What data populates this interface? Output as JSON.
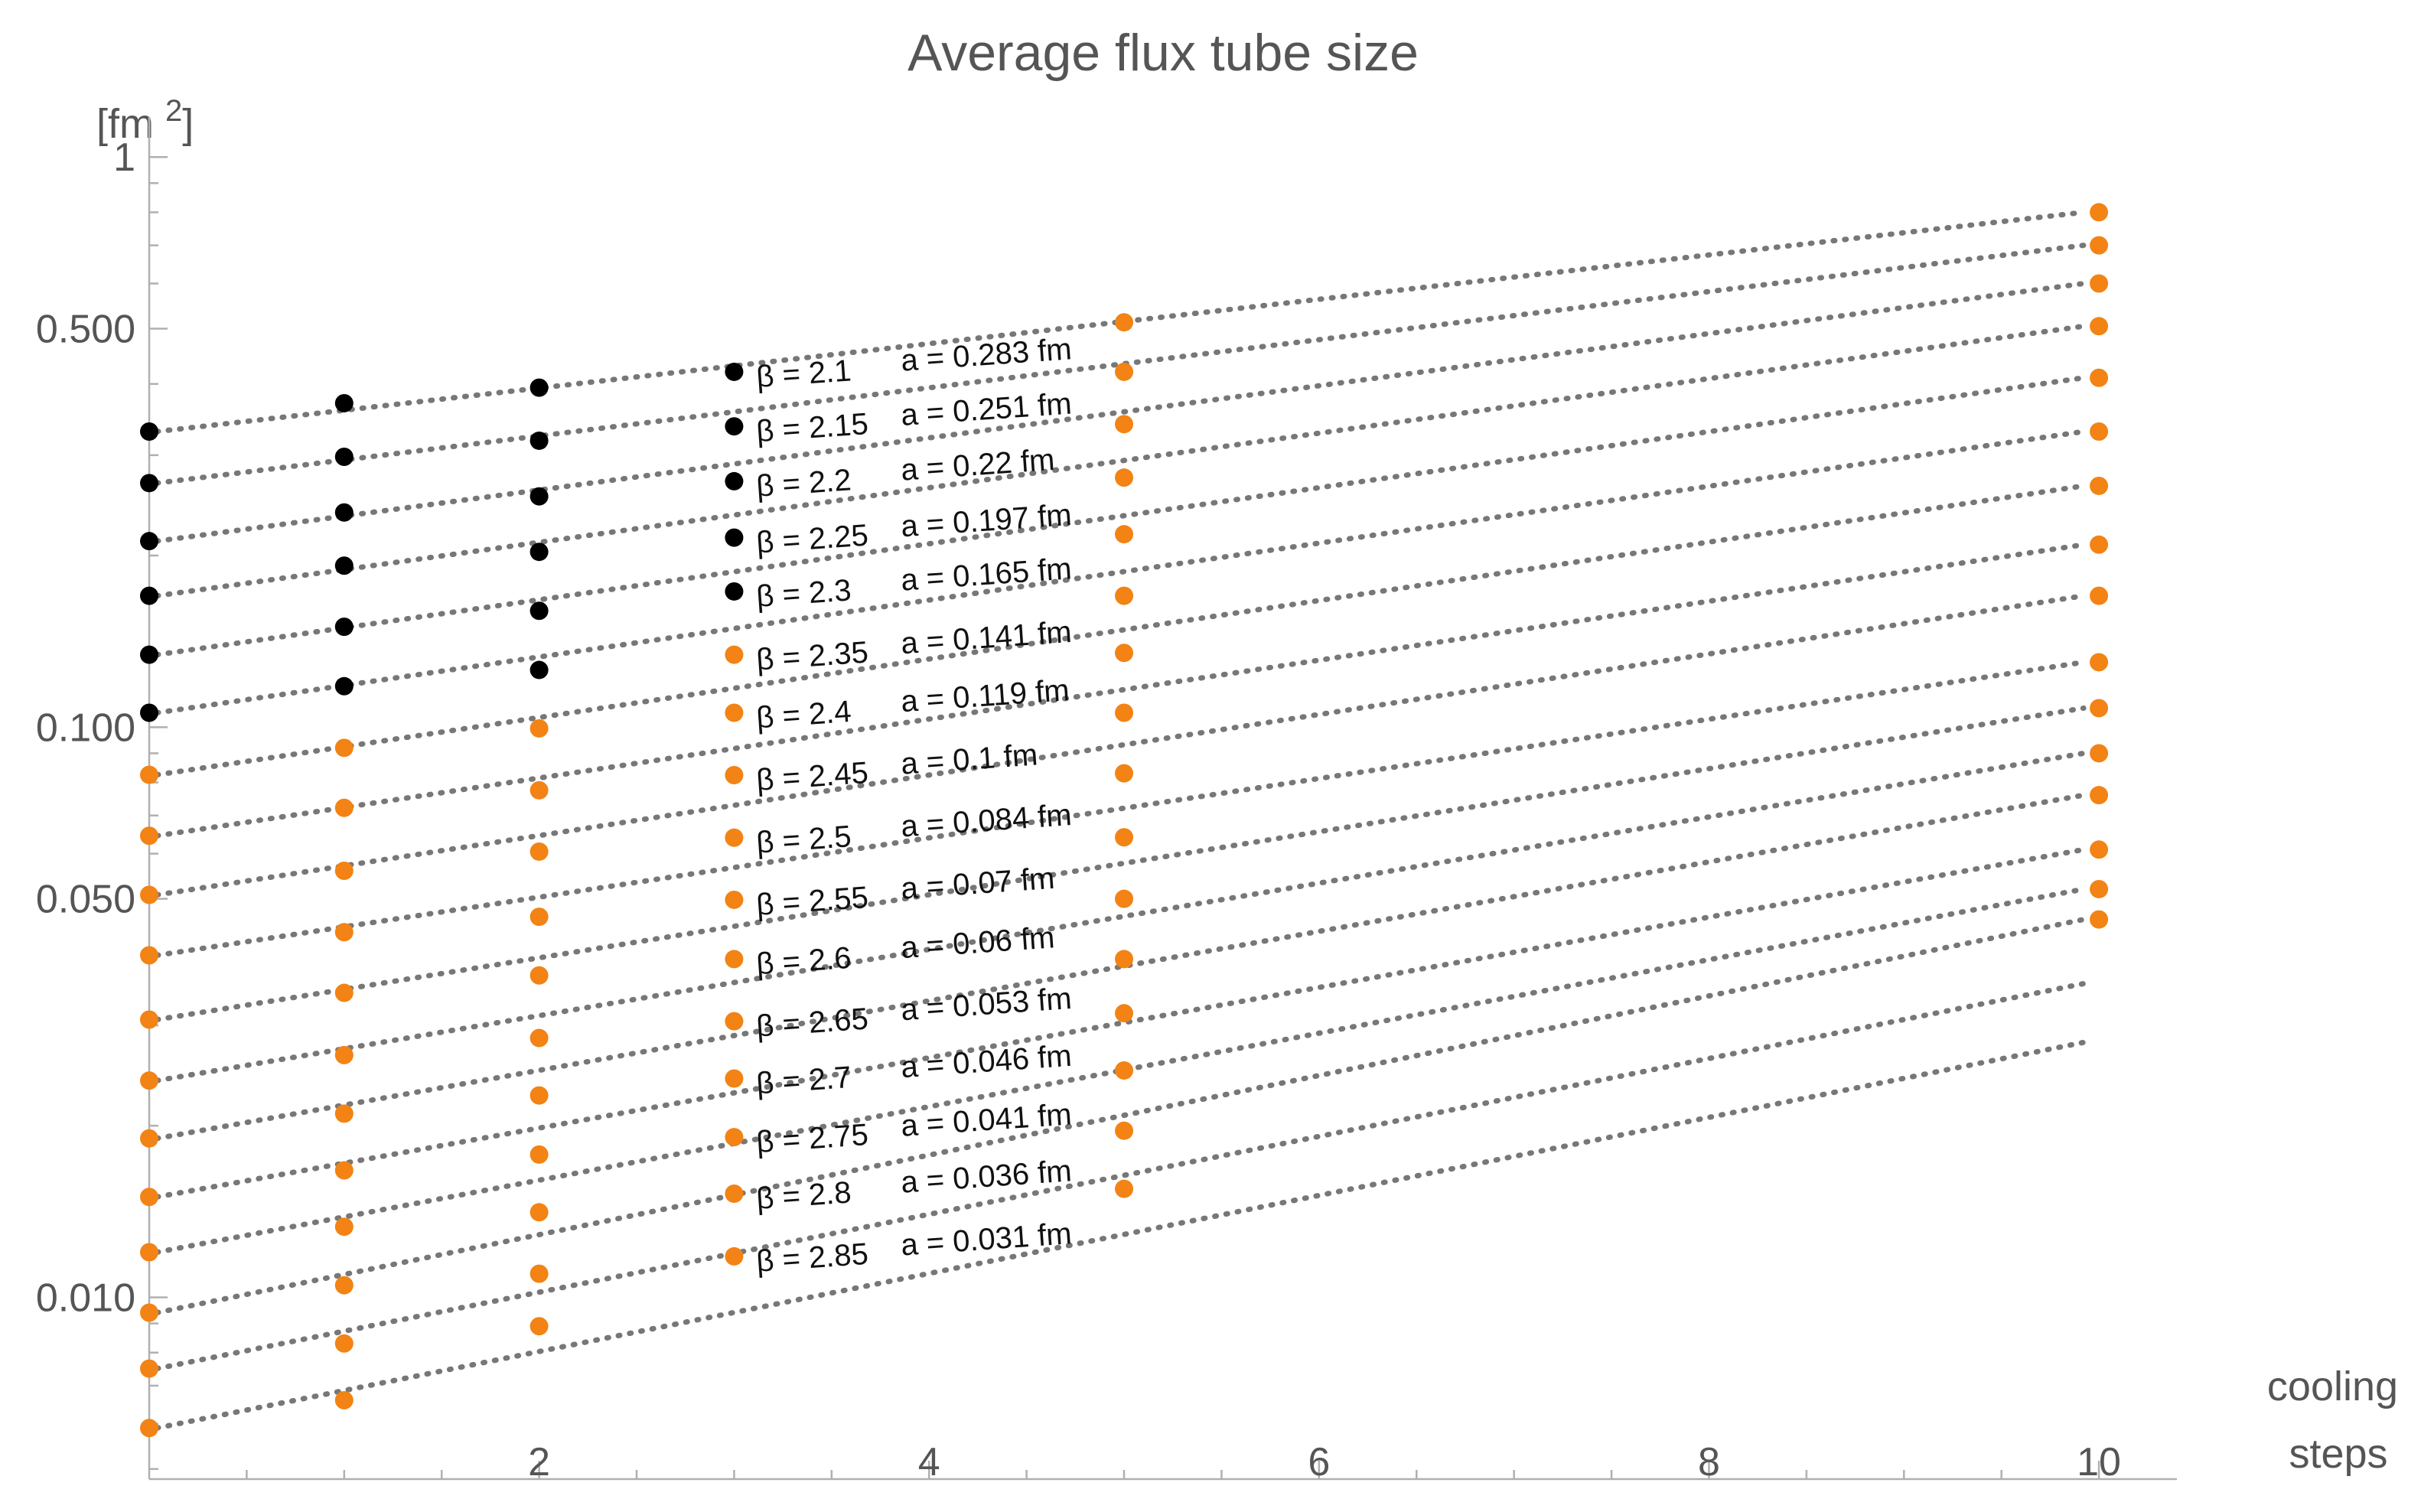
{
  "chart_data": {
    "type": "scatter",
    "title": "Average flux tube size",
    "ylabel": "[fm2]",
    "xlabel_lines": [
      "cooling",
      "steps"
    ],
    "x_scale": "linear",
    "y_scale": "log",
    "xlim": [
      0,
      10.4
    ],
    "ylim": [
      0.0048,
      1.25
    ],
    "x_ticks": [
      2,
      4,
      6,
      8,
      10
    ],
    "x_tick_labels": [
      "2",
      "4",
      "6",
      "8",
      "10"
    ],
    "y_ticks": [
      0.01,
      0.05,
      0.1,
      0.5,
      1
    ],
    "y_tick_labels": [
      "0.010",
      "0.050",
      "0.100",
      "0.500",
      "1"
    ],
    "colors": {
      "black": "#000000",
      "orange": "#f28314",
      "fit": "#777777"
    },
    "x": [
      0,
      1,
      2,
      3,
      5,
      10
    ],
    "series": [
      {
        "label": "β = 2.1",
        "spacing": "a = 0.283 fm",
        "values": [
          0.33,
          0.37,
          0.394,
          0.42,
          0.513,
          0.8
        ],
        "colors": [
          "black",
          "black",
          "black",
          "black",
          "orange",
          "orange"
        ],
        "fit": [
          0.33,
          0.8
        ]
      },
      {
        "label": "β = 2.15",
        "spacing": "a = 0.251 fm",
        "values": [
          0.268,
          0.298,
          0.318,
          0.337,
          0.42,
          0.7
        ],
        "colors": [
          "black",
          "black",
          "black",
          "black",
          "orange",
          "orange"
        ],
        "fit": [
          0.268,
          0.7
        ]
      },
      {
        "label": "β = 2.2",
        "spacing": "a = 0.22 fm",
        "values": [
          0.212,
          0.238,
          0.254,
          0.27,
          0.34,
          0.6
        ],
        "colors": [
          "black",
          "black",
          "black",
          "black",
          "orange",
          "orange"
        ],
        "fit": [
          0.212,
          0.6
        ]
      },
      {
        "label": "β = 2.25",
        "spacing": "a = 0.197 fm",
        "values": [
          0.17,
          0.192,
          0.203,
          0.215,
          0.274,
          0.505
        ],
        "colors": [
          "black",
          "black",
          "black",
          "black",
          "orange",
          "orange"
        ],
        "fit": [
          0.17,
          0.505
        ]
      },
      {
        "label": "β = 2.3",
        "spacing": "a = 0.165 fm",
        "values": [
          0.134,
          0.15,
          0.16,
          0.173,
          0.218,
          0.41
        ],
        "colors": [
          "black",
          "black",
          "black",
          "black",
          "orange",
          "orange"
        ],
        "fit": [
          0.134,
          0.41
        ]
      },
      {
        "label": "β = 2.35",
        "spacing": "a = 0.141 fm",
        "values": [
          0.106,
          0.118,
          0.126,
          0.134,
          0.17,
          0.33
        ],
        "colors": [
          "black",
          "black",
          "black",
          "orange",
          "orange",
          "orange"
        ],
        "fit": [
          0.106,
          0.33
        ]
      },
      {
        "label": "β = 2.4",
        "spacing": "a = 0.119 fm",
        "values": [
          0.0825,
          0.092,
          0.0995,
          0.106,
          0.135,
          0.265
        ],
        "colors": [
          "orange",
          "orange",
          "orange",
          "orange",
          "orange",
          "orange"
        ],
        "fit": [
          0.0825,
          0.265
        ]
      },
      {
        "label": "β = 2.45",
        "spacing": "a = 0.1 fm",
        "values": [
          0.0645,
          0.0722,
          0.0775,
          0.0824,
          0.106,
          0.209
        ],
        "colors": [
          "orange",
          "orange",
          "orange",
          "orange",
          "orange",
          "orange"
        ],
        "fit": [
          0.0645,
          0.209
        ]
      },
      {
        "label": "β = 2.5",
        "spacing": "a = 0.084 fm",
        "values": [
          0.0508,
          0.056,
          0.0605,
          0.064,
          0.083,
          0.17
        ],
        "colors": [
          "orange",
          "orange",
          "orange",
          "orange",
          "orange",
          "orange"
        ],
        "fit": [
          0.0508,
          0.17
        ]
      },
      {
        "label": "β = 2.55",
        "spacing": "a = 0.07 fm",
        "values": [
          0.0398,
          0.0437,
          0.0465,
          0.0498,
          0.0641,
          0.13
        ],
        "colors": [
          "orange",
          "orange",
          "orange",
          "orange",
          "orange",
          "orange"
        ],
        "fit": [
          0.0398,
          0.13
        ]
      },
      {
        "label": "β = 2.6",
        "spacing": "a = 0.06 fm",
        "values": [
          0.0307,
          0.0342,
          0.0367,
          0.0392,
          0.05,
          0.108
        ],
        "colors": [
          "orange",
          "orange",
          "orange",
          "orange",
          "orange",
          "orange"
        ],
        "fit": [
          0.0307,
          0.108
        ]
      },
      {
        "label": "β = 2.65",
        "spacing": "a = 0.053 fm",
        "values": [
          0.024,
          0.0266,
          0.0285,
          0.0305,
          0.0392,
          0.09
        ],
        "colors": [
          "orange",
          "orange",
          "orange",
          "orange",
          "orange",
          "orange"
        ],
        "fit": [
          0.024,
          0.09
        ]
      },
      {
        "label": "β = 2.7",
        "spacing": "a = 0.046 fm",
        "values": [
          0.019,
          0.021,
          0.0226,
          0.0242,
          0.0315,
          0.076
        ],
        "colors": [
          "orange",
          "orange",
          "orange",
          "orange",
          "orange",
          "orange"
        ],
        "fit": [
          0.019,
          0.076
        ]
      },
      {
        "label": "β = 2.75",
        "spacing": "a = 0.041 fm",
        "values": [
          0.015,
          0.0167,
          0.0178,
          0.0191,
          0.025,
          0.061
        ],
        "colors": [
          "orange",
          "orange",
          "orange",
          "orange",
          "orange",
          "orange"
        ],
        "fit": [
          0.015,
          0.061
        ]
      },
      {
        "label": "β = 2.8",
        "spacing": "a = 0.036 fm",
        "values": [
          0.012,
          0.0133,
          0.0141,
          0.0152,
          0.0196,
          0.052
        ],
        "colors": [
          "orange",
          "orange",
          "orange",
          "orange",
          "orange",
          "orange"
        ],
        "fit": [
          0.012,
          0.052
        ]
      },
      {
        "label": "β = 2.85",
        "spacing": "a = 0.031 fm",
        "values": [
          0.0094,
          0.0105,
          0.011,
          0.0118,
          0.0155,
          0.046
        ],
        "colors": [
          "orange",
          "orange",
          "orange",
          "orange",
          "orange",
          "orange"
        ],
        "fit": [
          0.0094,
          0.046
        ]
      },
      {
        "values": [
          0.0075,
          0.0083,
          0.0089,
          null,
          null,
          null
        ],
        "colors": [
          "orange",
          "orange",
          "orange",
          "orange",
          "orange",
          "orange"
        ],
        "fit": [
          0.0075,
          0.0355
        ]
      },
      {
        "values": [
          0.0059,
          0.0066,
          null,
          null,
          null,
          null
        ],
        "colors": [
          "orange",
          "orange",
          "orange",
          "orange",
          "orange",
          "orange"
        ],
        "fit": [
          0.0059,
          0.028
        ]
      }
    ]
  }
}
